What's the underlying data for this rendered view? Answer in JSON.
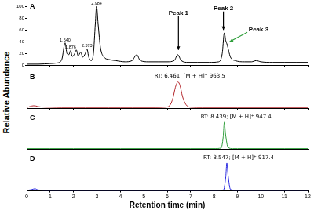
{
  "x_label": "Retention time (min)",
  "y_label": "Relative Abundance",
  "chart_data": [
    {
      "type": "line",
      "title": "A",
      "color": "#000000",
      "x": [
        0.0,
        0.5,
        1.0,
        1.3,
        1.5,
        1.64,
        1.72,
        1.8,
        1.876,
        1.95,
        2.05,
        2.12,
        2.2,
        2.3,
        2.4,
        2.5,
        2.573,
        2.65,
        2.75,
        2.85,
        2.93,
        2.984,
        3.05,
        3.15,
        3.3,
        3.5,
        3.8,
        4.2,
        4.5,
        4.7,
        4.85,
        5.2,
        5.6,
        6.0,
        6.3,
        6.45,
        6.6,
        6.9,
        7.3,
        7.8,
        8.2,
        8.35,
        8.44,
        8.5,
        8.56,
        8.7,
        8.9,
        9.3,
        9.6,
        9.8,
        10.0,
        10.5,
        11.0,
        11.5,
        12.0
      ],
      "values": [
        2,
        2,
        3,
        4,
        10,
        38,
        20,
        18,
        25,
        15,
        20,
        26,
        16,
        22,
        14,
        20,
        28,
        14,
        8,
        20,
        70,
        100,
        70,
        30,
        14,
        10,
        8,
        6,
        8,
        18,
        8,
        6,
        6,
        6,
        8,
        18,
        8,
        5,
        5,
        5,
        6,
        20,
        55,
        42,
        35,
        14,
        8,
        6,
        6,
        8,
        6,
        5,
        5,
        5,
        5
      ],
      "xlim": [
        0,
        12
      ],
      "xticks": [
        0,
        1,
        2,
        3,
        4,
        5,
        6,
        7,
        8,
        9,
        10,
        11,
        12
      ],
      "ylim": [
        0,
        100
      ],
      "yticks": [
        0,
        20,
        40,
        60,
        80,
        100
      ],
      "tick_labels": "y",
      "peak_labels": [
        {
          "value": 1.64,
          "label": "1.640"
        },
        {
          "value": 1.876,
          "label": "1.876"
        },
        {
          "value": 2.573,
          "label": "2.573"
        },
        {
          "value": 2.984,
          "label": "2.984"
        }
      ],
      "annotations": [
        "Peak 1",
        "Peak 2",
        "Peak 3"
      ]
    },
    {
      "type": "line",
      "title": "B",
      "color": "#b3262b",
      "x": [
        0.0,
        0.3,
        0.6,
        1.0,
        1.5,
        2.0,
        2.5,
        3.0,
        3.5,
        4.0,
        4.5,
        5.0,
        5.5,
        5.9,
        6.1,
        6.25,
        6.35,
        6.461,
        6.55,
        6.65,
        6.8,
        7.0,
        7.5,
        8.0,
        9.0,
        10.0,
        11.0,
        12.0
      ],
      "values": [
        2,
        8,
        4,
        3,
        2,
        2,
        2,
        2,
        2,
        2,
        2,
        2,
        2,
        3,
        8,
        35,
        70,
        88,
        75,
        40,
        12,
        3,
        2,
        2,
        2,
        2,
        2,
        2
      ],
      "xlim": [
        0,
        12
      ],
      "xticks": [
        0,
        1,
        2,
        3,
        4,
        5,
        6,
        7,
        8,
        9,
        10,
        11,
        12
      ],
      "ylim": [
        0,
        100
      ],
      "tick_labels": false,
      "annotation": "RT: 6.461; [M + H]⁺ 963.5"
    },
    {
      "type": "line",
      "title": "C",
      "color": "#2e9e3a",
      "x": [
        0.0,
        1.0,
        2.0,
        3.0,
        4.0,
        5.0,
        6.0,
        7.0,
        8.0,
        8.3,
        8.39,
        8.439,
        8.49,
        8.6,
        8.8,
        9.0,
        10.0,
        11.0,
        12.0
      ],
      "values": [
        1,
        1,
        1,
        1,
        1,
        1,
        1,
        1,
        1,
        3,
        40,
        90,
        50,
        5,
        1,
        1,
        1,
        1,
        1
      ],
      "xlim": [
        0,
        12
      ],
      "xticks": [
        0,
        1,
        2,
        3,
        4,
        5,
        6,
        7,
        8,
        9,
        10,
        11,
        12
      ],
      "ylim": [
        0,
        100
      ],
      "tick_labels": false,
      "annotation": "RT: 8.439; [M + H]⁺ 947.4"
    },
    {
      "type": "line",
      "title": "D",
      "color": "#2a2ae0",
      "x": [
        0.0,
        0.2,
        0.35,
        0.5,
        1.0,
        2.0,
        3.0,
        4.0,
        5.0,
        6.0,
        7.0,
        8.0,
        8.4,
        8.5,
        8.547,
        8.6,
        8.7,
        8.9,
        9.0,
        10.0,
        11.0,
        12.0
      ],
      "values": [
        2,
        4,
        7,
        3,
        2,
        2,
        2,
        2,
        2,
        2,
        2,
        2,
        3,
        45,
        90,
        50,
        5,
        2,
        2,
        2,
        2,
        2
      ],
      "xlim": [
        0,
        12
      ],
      "xticks": [
        0,
        1,
        2,
        3,
        4,
        5,
        6,
        7,
        8,
        9,
        10,
        11,
        12
      ],
      "ylim": [
        0,
        100
      ],
      "tick_labels": "x",
      "annotation": "RT: 8.547; [M + H]⁺ 917.4"
    }
  ]
}
